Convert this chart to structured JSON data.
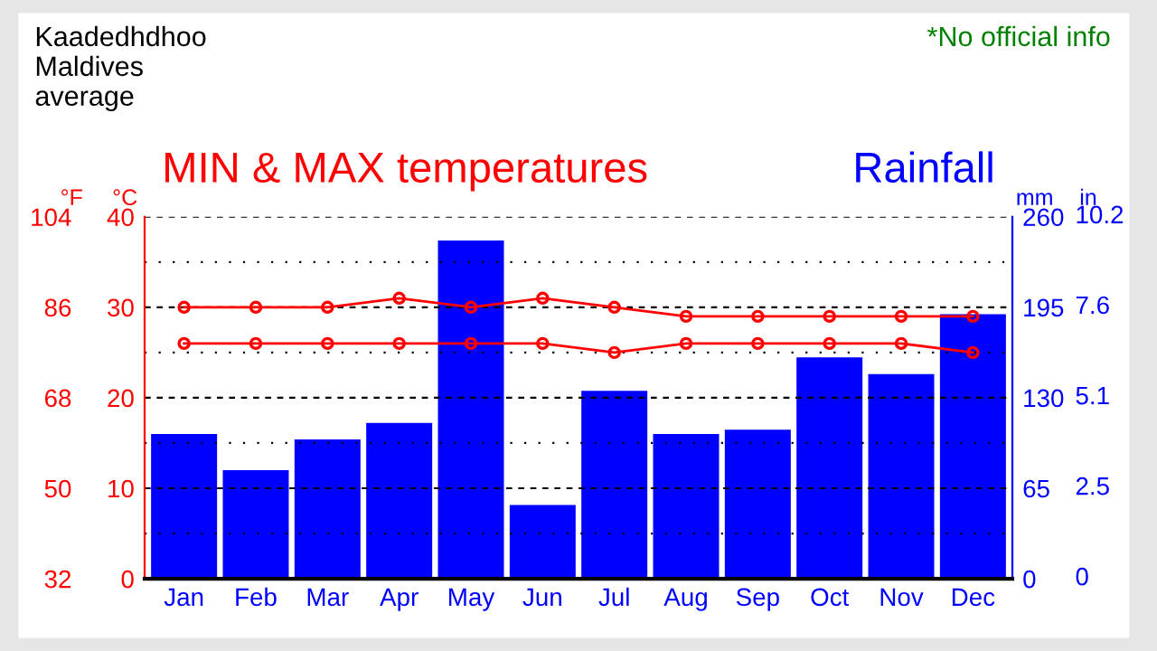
{
  "chart_data": {
    "type": "bar",
    "title": "MIN & MAX temperatures",
    "subtitle": "Rainfall",
    "annotations": [
      "Kaadedhdhoo\nMaldives\naverage",
      "*No official info",
      "in",
      "0",
      "2.5",
      "5.1",
      "7.6",
      "10.2"
    ],
    "ylabel": "°C",
    "y2label": "mm",
    "y3label": "°F",
    "categories": [
      "Jan",
      "Feb",
      "Mar",
      "Apr",
      "May",
      "Jun",
      "Jul",
      "Aug",
      "Sep",
      "Oct",
      "Nov",
      "Dec"
    ],
    "series": [
      {
        "axis": "y2",
        "color": "#0000ff",
        "values": [
          104,
          78,
          100,
          112,
          243,
          53,
          135,
          104,
          107,
          159,
          147,
          190
        ]
      },
      {
        "type": "line",
        "axis": "y",
        "color": "#ff0000",
        "marker": "circle",
        "values": [
          30,
          30,
          30,
          31,
          30,
          31,
          30,
          29,
          29,
          29,
          29,
          29
        ]
      },
      {
        "type": "line",
        "axis": "y",
        "color": "#ff0000",
        "marker": "circle",
        "values": [
          26,
          26,
          26,
          26,
          26,
          26,
          25,
          26,
          26,
          26,
          26,
          25
        ]
      }
    ],
    "ylim": [
      0,
      40
    ],
    "yticks": [
      0,
      {
        "value": 5,
        "label": null
      },
      10,
      {
        "value": 15,
        "label": null
      },
      20,
      {
        "value": 25,
        "label": null
      },
      30,
      {
        "value": 35,
        "label": null
      },
      40
    ],
    "y2lim": [
      0,
      260
    ],
    "y2ticks": [
      0,
      65,
      130,
      195,
      260
    ],
    "y3lim": [
      32,
      104
    ],
    "y3ticks": [
      32,
      50,
      68,
      86,
      104
    ],
    "grid": "y",
    "legend": false,
    "line_style": "solid"
  }
}
